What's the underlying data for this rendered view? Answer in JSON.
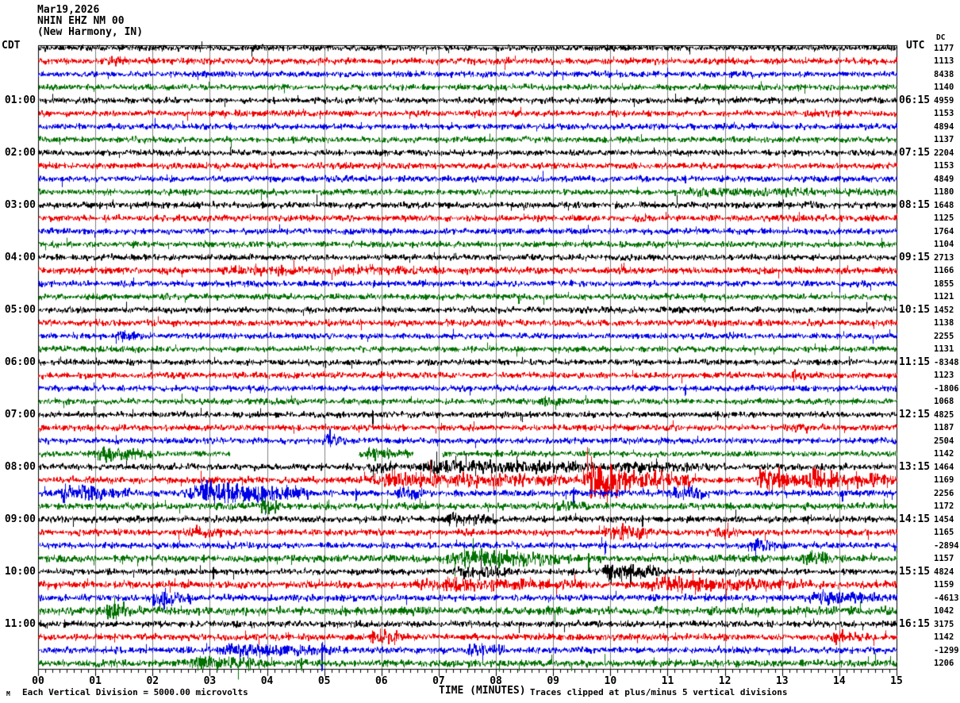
{
  "header": {
    "date": "Mar19,2026",
    "station": "NHIN EHZ NM 00",
    "location": "(New Harmony, IN)"
  },
  "corner_labels": {
    "left_tz": "CDT",
    "right_tz": "UTC",
    "value_col_header": "DC"
  },
  "left_time_labels": [
    "01:00",
    "02:00",
    "03:00",
    "04:00",
    "05:00",
    "06:00",
    "07:00",
    "08:00",
    "09:00",
    "10:00",
    "11:00"
  ],
  "right_time_labels": [
    "06:15",
    "07:15",
    "08:15",
    "09:15",
    "10:15",
    "11:15",
    "12:15",
    "13:15",
    "14:15",
    "15:15",
    "16:15"
  ],
  "axis": {
    "title": "TIME (MINUTES)",
    "minute_labels": [
      "00",
      "01",
      "02",
      "03",
      "04",
      "05",
      "06",
      "07",
      "08",
      "09",
      "10",
      "11",
      "12",
      "13",
      "14",
      "15"
    ]
  },
  "footer": {
    "left_note": "Each Vertical Division = 5000.00 microvolts",
    "right_note": "Traces clipped at plus/minus 5 vertical divisions",
    "watermark": "M"
  },
  "colors": {
    "trace_cycle": [
      "#000000",
      "#ee0000",
      "#0000e6",
      "#007000"
    ],
    "grid": "#808080",
    "frame": "#000000",
    "text": "#000000"
  },
  "chart_data": {
    "type": "seismogram-heliplot",
    "title": "NHIN EHZ NM 00 (New Harmony, IN) Mar19,2026",
    "x_range_minutes": [
      0,
      15
    ],
    "minutes_per_row": 15,
    "rows_per_hour": 4,
    "vertical_division_microvolts": 5000.0,
    "clip_divisions": 5,
    "rows": [
      {
        "cdt": "00:00",
        "color": 0,
        "value": "1177",
        "amp": 2.2,
        "events": [],
        "gaps": [],
        "spikes": []
      },
      {
        "cdt": "00:15",
        "color": 1,
        "value": "1113",
        "amp": 2.4,
        "events": [
          [
            1.2,
            1.6,
            1.0
          ]
        ],
        "gaps": [],
        "spikes": []
      },
      {
        "cdt": "00:30",
        "color": 2,
        "value": "8438",
        "amp": 2.2,
        "events": [],
        "gaps": [],
        "spikes": []
      },
      {
        "cdt": "00:45",
        "color": 3,
        "value": "1140",
        "amp": 2.2,
        "events": [],
        "gaps": [],
        "spikes": []
      },
      {
        "cdt": "01:00",
        "color": 0,
        "value": "4959",
        "amp": 2.2,
        "events": [],
        "gaps": [],
        "spikes": []
      },
      {
        "cdt": "01:15",
        "color": 1,
        "value": "1153",
        "amp": 2.3,
        "events": [],
        "gaps": [],
        "spikes": []
      },
      {
        "cdt": "01:30",
        "color": 2,
        "value": "4894",
        "amp": 2.2,
        "events": [],
        "gaps": [],
        "spikes": []
      },
      {
        "cdt": "01:45",
        "color": 3,
        "value": "1137",
        "amp": 2.2,
        "events": [],
        "gaps": [],
        "spikes": []
      },
      {
        "cdt": "02:00",
        "color": 0,
        "value": "2204",
        "amp": 2.2,
        "events": [],
        "gaps": [],
        "spikes": []
      },
      {
        "cdt": "02:15",
        "color": 1,
        "value": "1153",
        "amp": 2.3,
        "events": [],
        "gaps": [],
        "spikes": []
      },
      {
        "cdt": "02:30",
        "color": 2,
        "value": "4849",
        "amp": 2.2,
        "events": [],
        "gaps": [],
        "spikes": [
          [
            11.3,
            6
          ]
        ]
      },
      {
        "cdt": "02:45",
        "color": 3,
        "value": "1180",
        "amp": 2.2,
        "events": [
          [
            11.0,
            15.0,
            0.7
          ]
        ],
        "gaps": [],
        "spikes": []
      },
      {
        "cdt": "03:00",
        "color": 0,
        "value": "1648",
        "amp": 2.5,
        "events": [],
        "gaps": [],
        "spikes": []
      },
      {
        "cdt": "03:15",
        "color": 1,
        "value": "1125",
        "amp": 2.3,
        "events": [],
        "gaps": [],
        "spikes": []
      },
      {
        "cdt": "03:30",
        "color": 2,
        "value": "1764",
        "amp": 2.2,
        "events": [],
        "gaps": [],
        "spikes": []
      },
      {
        "cdt": "03:45",
        "color": 3,
        "value": "1104",
        "amp": 2.2,
        "events": [],
        "gaps": [],
        "spikes": []
      },
      {
        "cdt": "04:00",
        "color": 0,
        "value": "2713",
        "amp": 2.2,
        "events": [],
        "gaps": [],
        "spikes": []
      },
      {
        "cdt": "04:15",
        "color": 1,
        "value": "1166",
        "amp": 2.5,
        "events": [
          [
            3.0,
            7.0,
            0.6
          ]
        ],
        "gaps": [],
        "spikes": []
      },
      {
        "cdt": "04:30",
        "color": 2,
        "value": "1855",
        "amp": 2.2,
        "events": [],
        "gaps": [],
        "spikes": []
      },
      {
        "cdt": "04:45",
        "color": 3,
        "value": "1121",
        "amp": 2.2,
        "events": [],
        "gaps": [],
        "spikes": [
          [
            8.4,
            6
          ]
        ]
      },
      {
        "cdt": "05:00",
        "color": 0,
        "value": "1452",
        "amp": 2.3,
        "events": [],
        "gaps": [],
        "spikes": []
      },
      {
        "cdt": "05:15",
        "color": 1,
        "value": "1138",
        "amp": 2.4,
        "events": [],
        "gaps": [],
        "spikes": []
      },
      {
        "cdt": "05:30",
        "color": 2,
        "value": "2255",
        "amp": 2.2,
        "events": [
          [
            1.35,
            1.75,
            1.5
          ]
        ],
        "gaps": [],
        "spikes": []
      },
      {
        "cdt": "05:45",
        "color": 3,
        "value": "1131",
        "amp": 2.2,
        "events": [],
        "gaps": [],
        "spikes": []
      },
      {
        "cdt": "06:00",
        "color": 0,
        "value": "-8348",
        "amp": 2.2,
        "events": [],
        "gaps": [],
        "spikes": []
      },
      {
        "cdt": "06:15",
        "color": 1,
        "value": "1123",
        "amp": 2.3,
        "events": [
          [
            13.1,
            13.6,
            1.1
          ]
        ],
        "gaps": [],
        "spikes": []
      },
      {
        "cdt": "06:30",
        "color": 2,
        "value": "-1806",
        "amp": 2.2,
        "events": [],
        "gaps": [],
        "spikes": [
          [
            11.3,
            7
          ]
        ]
      },
      {
        "cdt": "06:45",
        "color": 3,
        "value": "1068",
        "amp": 2.2,
        "events": [
          [
            8.7,
            9.3,
            1.4
          ]
        ],
        "gaps": [],
        "spikes": []
      },
      {
        "cdt": "07:00",
        "color": 0,
        "value": "4825",
        "amp": 2.2,
        "events": [],
        "gaps": [],
        "spikes": [
          [
            5.85,
            12
          ]
        ]
      },
      {
        "cdt": "07:15",
        "color": 1,
        "value": "1187",
        "amp": 2.3,
        "events": [
          [
            13.1,
            13.5,
            1.2
          ]
        ],
        "gaps": [],
        "spikes": []
      },
      {
        "cdt": "07:30",
        "color": 2,
        "value": "2504",
        "amp": 2.2,
        "events": [
          [
            4.95,
            5.4,
            2.0
          ]
        ],
        "gaps": [],
        "spikes": [
          [
            5.1,
            9
          ]
        ]
      },
      {
        "cdt": "07:45",
        "color": 3,
        "value": "1142",
        "amp": 2.2,
        "events": [
          [
            0.9,
            2.0,
            2.0
          ],
          [
            5.6,
            6.5,
            1.0
          ]
        ],
        "gaps": [
          [
            3.35,
            5.6
          ],
          [
            6.55,
            7.05
          ]
        ],
        "spikes": []
      },
      {
        "cdt": "08:00",
        "color": 0,
        "value": "1464",
        "amp": 2.3,
        "events": [
          [
            5.7,
            6.3,
            1.4
          ],
          [
            6.3,
            9.7,
            1.7
          ],
          [
            9.7,
            12.0,
            1.1
          ]
        ],
        "gaps": [],
        "spikes": []
      },
      {
        "cdt": "08:15",
        "color": 1,
        "value": "1169",
        "amp": 2.5,
        "events": [
          [
            5.5,
            9.4,
            1.5
          ],
          [
            9.45,
            10.4,
            6.5
          ],
          [
            10.4,
            11.6,
            2.2
          ],
          [
            12.5,
            13.3,
            3.2
          ],
          [
            13.3,
            14.2,
            2.6
          ],
          [
            14.2,
            15.0,
            1.5
          ]
        ],
        "gaps": [],
        "spikes": []
      },
      {
        "cdt": "08:30",
        "color": 2,
        "value": "2256",
        "amp": 2.4,
        "events": [
          [
            0.2,
            1.6,
            2.0
          ],
          [
            2.5,
            4.7,
            2.8
          ],
          [
            6.2,
            6.7,
            1.6
          ],
          [
            11.0,
            11.7,
            1.8
          ]
        ],
        "gaps": [],
        "spikes": [
          [
            9.35,
            13
          ],
          [
            5.55,
            9
          ],
          [
            14.05,
            8
          ]
        ]
      },
      {
        "cdt": "08:45",
        "color": 3,
        "value": "1172",
        "amp": 2.5,
        "events": [
          [
            3.85,
            4.25,
            2.0
          ],
          [
            9.0,
            9.6,
            1.1
          ]
        ],
        "gaps": [],
        "spikes": []
      },
      {
        "cdt": "09:00",
        "color": 0,
        "value": "1454",
        "amp": 2.4,
        "events": [
          [
            7.0,
            8.0,
            1.4
          ]
        ],
        "gaps": [],
        "spikes": [
          [
            10.55,
            8
          ]
        ]
      },
      {
        "cdt": "09:15",
        "color": 1,
        "value": "1165",
        "amp": 2.4,
        "events": [
          [
            2.6,
            3.2,
            1.2
          ],
          [
            9.8,
            10.7,
            1.9
          ],
          [
            11.8,
            12.3,
            1.1
          ]
        ],
        "gaps": [],
        "spikes": []
      },
      {
        "cdt": "09:30",
        "color": 2,
        "value": "-2894",
        "amp": 2.2,
        "events": [
          [
            12.4,
            12.9,
            1.4
          ]
        ],
        "gaps": [],
        "spikes": [
          [
            9.9,
            9
          ]
        ]
      },
      {
        "cdt": "09:45",
        "color": 3,
        "value": "1157",
        "amp": 2.6,
        "events": [
          [
            7.0,
            9.3,
            2.0
          ],
          [
            13.3,
            14.0,
            1.2
          ]
        ],
        "gaps": [],
        "spikes": [
          [
            9.62,
            15
          ],
          [
            7.45,
            9
          ]
        ]
      },
      {
        "cdt": "10:00",
        "color": 0,
        "value": "4824",
        "amp": 2.2,
        "events": [
          [
            7.3,
            8.3,
            2.0
          ],
          [
            9.8,
            10.9,
            2.3
          ]
        ],
        "gaps": [],
        "spikes": [
          [
            10.35,
            17
          ],
          [
            3.05,
            8
          ]
        ]
      },
      {
        "cdt": "10:15",
        "color": 1,
        "value": "1159",
        "amp": 2.6,
        "events": [
          [
            6.5,
            9.5,
            1.2
          ],
          [
            10.5,
            13.5,
            1.3
          ]
        ],
        "gaps": [],
        "spikes": []
      },
      {
        "cdt": "10:30",
        "color": 2,
        "value": "-4613",
        "amp": 2.4,
        "events": [
          [
            1.9,
            2.7,
            1.6
          ],
          [
            13.4,
            14.8,
            1.4
          ]
        ],
        "gaps": [],
        "spikes": [
          [
            2.2,
            8
          ]
        ]
      },
      {
        "cdt": "10:45",
        "color": 3,
        "value": "1042",
        "amp": 3.0,
        "events": [
          [
            1.1,
            1.7,
            1.4
          ]
        ],
        "gaps": [],
        "spikes": []
      },
      {
        "cdt": "11:00",
        "color": 0,
        "value": "3175",
        "amp": 2.4,
        "events": [],
        "gaps": [],
        "spikes": []
      },
      {
        "cdt": "11:15",
        "color": 1,
        "value": "1142",
        "amp": 2.4,
        "events": [
          [
            5.75,
            6.35,
            2.0
          ],
          [
            13.8,
            14.4,
            1.5
          ]
        ],
        "gaps": [],
        "spikes": []
      },
      {
        "cdt": "11:30",
        "color": 2,
        "value": "-1299",
        "amp": 2.4,
        "events": [
          [
            3.0,
            5.3,
            1.3
          ],
          [
            7.4,
            8.2,
            1.2
          ]
        ],
        "gaps": [],
        "spikes": [
          [
            4.95,
            25
          ]
        ]
      },
      {
        "cdt": "11:45",
        "color": 3,
        "value": "1206",
        "amp": 2.6,
        "events": [
          [
            2.5,
            4.0,
            1.4
          ]
        ],
        "gaps": [],
        "spikes": [
          [
            4.6,
            8
          ]
        ]
      }
    ]
  }
}
